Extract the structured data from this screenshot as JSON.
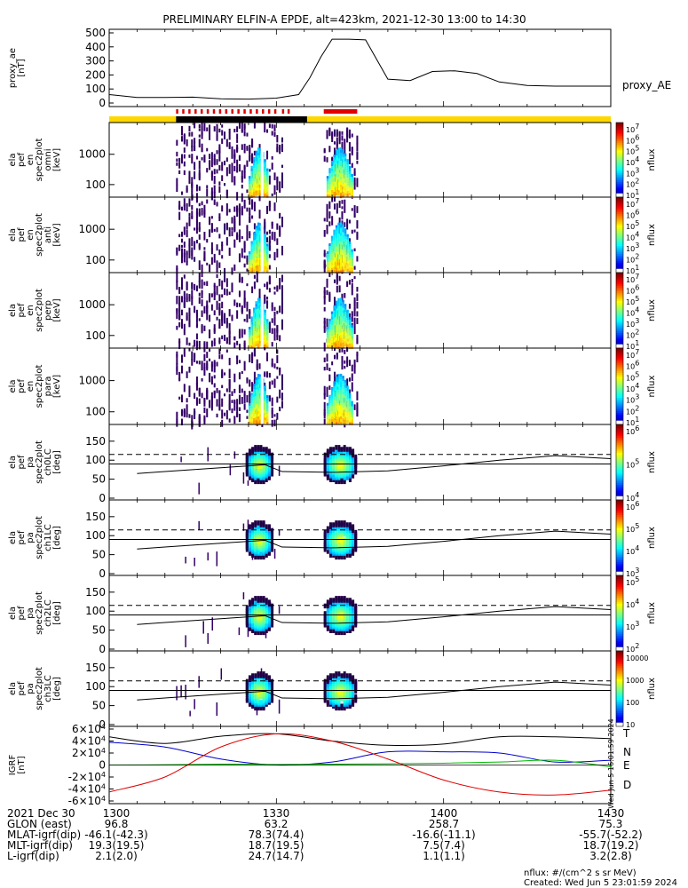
{
  "title": "PRELIMINARY ELFIN-A EPDE, alt=423km, 2021-12-30 13:00 to 14:30",
  "x_range": [
    "13:00",
    "14:30"
  ],
  "footer": {
    "labels": [
      "2021 Dec 30",
      "GLON (east)",
      "MLAT-igrf(dip)",
      "MLT-igrf(dip)",
      "L-igrf(dip)"
    ],
    "columns": [
      {
        "time": "1300",
        "glon": "96.8",
        "mlat": "-46.1(-42.3)",
        "mlt": "19.3(19.5)",
        "l": "2.1(2.0)"
      },
      {
        "time": "1330",
        "glon": "63.2",
        "mlat": "78.3(74.4)",
        "mlt": "18.7(19.5)",
        "l": "24.7(14.7)"
      },
      {
        "time": "1400",
        "glon": "258.7",
        "mlat": "-16.6(-11.1)",
        "mlt": "7.5(7.4)",
        "l": "1.1(1.1)"
      },
      {
        "time": "1430",
        "glon": "75.3",
        "mlat": "-55.7(-52.2)",
        "mlt": "18.7(19.2)",
        "l": "3.2(2.8)"
      }
    ],
    "units_note": "nflux: #/(cm^2 s sr MeV)",
    "created": "Created: Wed Jun  5 23:01:59 2024",
    "side_stamp": "Wed Jun  5 16:01:59 2024"
  },
  "colors": {
    "yellow_bar": "#ffd700",
    "red_marks": "#e00000",
    "igrf_t": "#000000",
    "igrf_n": "#0000cc",
    "igrf_e": "#00bb00",
    "igrf_d": "#dd0000"
  },
  "chart_data": [
    {
      "type": "line",
      "panel": "proxy_ae",
      "ylabel": "proxy_ae [nT]",
      "legend": "proxy_AE",
      "yticks": [
        "500",
        "400",
        "300",
        "200",
        "100",
        "0"
      ],
      "ylim": [
        0,
        500
      ],
      "x_minutes": [
        0,
        5,
        10,
        15,
        20,
        25,
        30,
        34,
        36,
        38,
        40,
        43,
        46,
        50,
        54,
        58,
        62,
        66,
        70,
        75,
        80,
        85,
        90
      ],
      "values": [
        60,
        40,
        40,
        42,
        30,
        28,
        35,
        60,
        180,
        330,
        455,
        455,
        450,
        170,
        160,
        225,
        230,
        210,
        150,
        125,
        120,
        120,
        120
      ]
    },
    {
      "type": "heatmap",
      "panel": "omni",
      "ylabel": [
        "ela",
        "pef",
        "en",
        "spec2plot",
        "omni",
        "[keV]"
      ],
      "yticks": [
        "1000",
        "100"
      ],
      "cbar_ticks": [
        "10^7",
        "10^6",
        "10^5",
        "10^4",
        "10^3",
        "10^2",
        "10^1"
      ],
      "cbar_label": "nflux"
    },
    {
      "type": "heatmap",
      "panel": "anti",
      "ylabel": [
        "ela",
        "pef",
        "en",
        "spec2plot",
        "anti",
        "[keV]"
      ],
      "yticks": [
        "1000",
        "100"
      ],
      "cbar_ticks": [
        "10^7",
        "10^6",
        "10^5",
        "10^4",
        "10^3",
        "10^2",
        "10^1"
      ],
      "cbar_label": "nflux"
    },
    {
      "type": "heatmap",
      "panel": "perp",
      "ylabel": [
        "ela",
        "pef",
        "en",
        "spec2plot",
        "perp",
        "[keV]"
      ],
      "yticks": [
        "1000",
        "100"
      ],
      "cbar_ticks": [
        "10^7",
        "10^6",
        "10^5",
        "10^4",
        "10^3",
        "10^2",
        "10^1"
      ],
      "cbar_label": "nflux"
    },
    {
      "type": "heatmap",
      "panel": "para",
      "ylabel": [
        "ela",
        "pef",
        "en",
        "spec2plot",
        "para",
        "[keV]"
      ],
      "yticks": [
        "1000",
        "100"
      ],
      "cbar_ticks": [
        "10^7",
        "10^6",
        "10^5",
        "10^4",
        "10^3",
        "10^2",
        "10^1"
      ],
      "cbar_label": "nflux"
    },
    {
      "type": "heatmap",
      "panel": "ch0LC",
      "ylabel": [
        "ela",
        "pef",
        "pa",
        "spec2plot",
        "ch0LC",
        "[deg]"
      ],
      "yticks": [
        "150",
        "100",
        "50",
        "0"
      ],
      "cbar_ticks": [
        "10^6",
        "10^5",
        "10^4"
      ],
      "cbar_label": "nflux"
    },
    {
      "type": "heatmap",
      "panel": "ch1LC",
      "ylabel": [
        "ela",
        "pef",
        "pa",
        "spec2plot",
        "ch1LC",
        "[deg]"
      ],
      "yticks": [
        "150",
        "100",
        "50",
        "0"
      ],
      "cbar_ticks": [
        "10^6",
        "10^5",
        "10^4",
        "10^3"
      ],
      "cbar_label": "nflux"
    },
    {
      "type": "heatmap",
      "panel": "ch2LC",
      "ylabel": [
        "ela",
        "pef",
        "pa",
        "spec2plot",
        "ch2LC",
        "[deg]"
      ],
      "yticks": [
        "150",
        "100",
        "50",
        "0"
      ],
      "cbar_ticks": [
        "10^5",
        "10^4",
        "10^3",
        "10^2"
      ],
      "cbar_label": "nflux"
    },
    {
      "type": "heatmap",
      "panel": "ch3LC",
      "ylabel": [
        "ela",
        "pef",
        "pa",
        "spec2plot",
        "ch3LC",
        "[deg]"
      ],
      "yticks": [
        "150",
        "100",
        "50",
        "0"
      ],
      "cbar_ticks": [
        "10000",
        "1000",
        "100",
        "10"
      ],
      "cbar_label": "nflux"
    },
    {
      "type": "line",
      "panel": "igrf",
      "ylabel": "IGRF [nT]",
      "yticks": [
        "6×10^4",
        "4×10^4",
        "2×10^4",
        "0",
        "-2×10^4",
        "-4×10^4",
        "-6×10^4"
      ],
      "ylim": [
        -60000,
        60000
      ],
      "series": [
        {
          "name": "T",
          "x_minutes": [
            0,
            10,
            20,
            30,
            40,
            50,
            60,
            70,
            80,
            90
          ],
          "values": [
            47000,
            36000,
            48000,
            52000,
            40000,
            33000,
            35000,
            47000,
            47000,
            44000
          ]
        },
        {
          "name": "N",
          "x_minutes": [
            0,
            10,
            20,
            30,
            40,
            50,
            60,
            70,
            80,
            90
          ],
          "values": [
            38000,
            30000,
            10000,
            0,
            5000,
            22000,
            22000,
            20000,
            5000,
            8000
          ]
        },
        {
          "name": "E",
          "x_minutes": [
            0,
            10,
            20,
            30,
            40,
            50,
            60,
            70,
            80,
            90
          ],
          "values": [
            0,
            500,
            1500,
            1000,
            1500,
            2000,
            3000,
            5000,
            8000,
            -3000
          ]
        },
        {
          "name": "D",
          "x_minutes": [
            0,
            10,
            20,
            30,
            40,
            50,
            60,
            70,
            80,
            90
          ],
          "values": [
            -45000,
            -20000,
            30000,
            52000,
            40000,
            10000,
            -25000,
            -45000,
            -50000,
            -42000
          ]
        }
      ]
    }
  ]
}
